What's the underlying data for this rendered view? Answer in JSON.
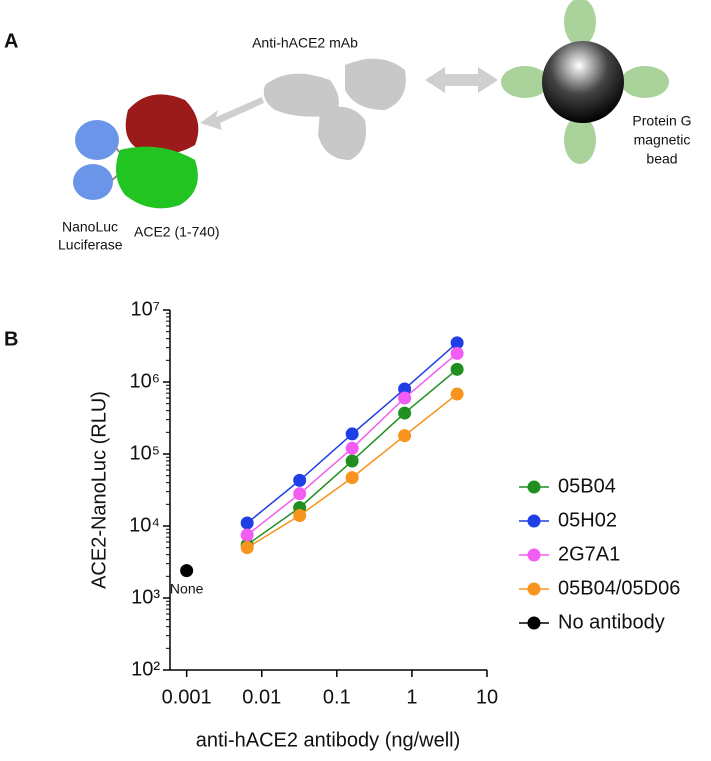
{
  "panel_a": {
    "label": "A",
    "antibody": "Anti-hACE2 mAb",
    "luciferase": [
      "NanoLuc",
      "Luciferase"
    ],
    "ace2": "ACE2 (1-740)",
    "bead": [
      "Protein G",
      "magnetic",
      "bead"
    ]
  },
  "chart_data": {
    "type": "scatter",
    "panel_label": "B",
    "x_label": "anti-hACE2 antibody (ng/well)",
    "y_label": "ACE2-NanoLuc (RLU)",
    "log_x": true,
    "log_y": true,
    "legend": "right",
    "xlim": [
      0.0006,
      10
    ],
    "xticks": [
      0.001,
      0.01,
      0.1,
      1,
      10
    ],
    "ylim": [
      100,
      10000000
    ],
    "yticks": [
      {
        "value": 100,
        "label": "10²"
      },
      {
        "value": 1000,
        "label": "10³"
      },
      {
        "value": 10000,
        "label": "10⁴"
      },
      {
        "value": 100000,
        "label": "10⁵"
      },
      {
        "value": 1000000,
        "label": "10⁶"
      },
      {
        "value": 10000000,
        "label": "10⁷"
      }
    ],
    "series": [
      {
        "name": "05B04",
        "color": "#1f8f1f",
        "x": [
          0.0064,
          0.032,
          0.16,
          0.8,
          4
        ],
        "values": [
          5500,
          18000,
          80000,
          370000,
          1500000
        ]
      },
      {
        "name": "05H02",
        "color": "#1f3fe6",
        "x": [
          0.0064,
          0.032,
          0.16,
          0.8,
          4
        ],
        "values": [
          11000,
          43000,
          190000,
          800000,
          3500000
        ]
      },
      {
        "name": "2G7A1",
        "color": "#f25cf2",
        "x": [
          0.0064,
          0.032,
          0.16,
          0.8,
          4
        ],
        "values": [
          7500,
          28000,
          120000,
          600000,
          2500000
        ]
      },
      {
        "name": "05B04/05D06",
        "color": "#f7941d",
        "x": [
          0.0064,
          0.032,
          0.16,
          0.8,
          4
        ],
        "values": [
          5000,
          14000,
          47000,
          180000,
          680000
        ]
      },
      {
        "name": "No antibody",
        "color": "#000000",
        "x": [
          0.001
        ],
        "values": [
          2400
        ],
        "point_label": "None",
        "connect": false
      }
    ]
  }
}
